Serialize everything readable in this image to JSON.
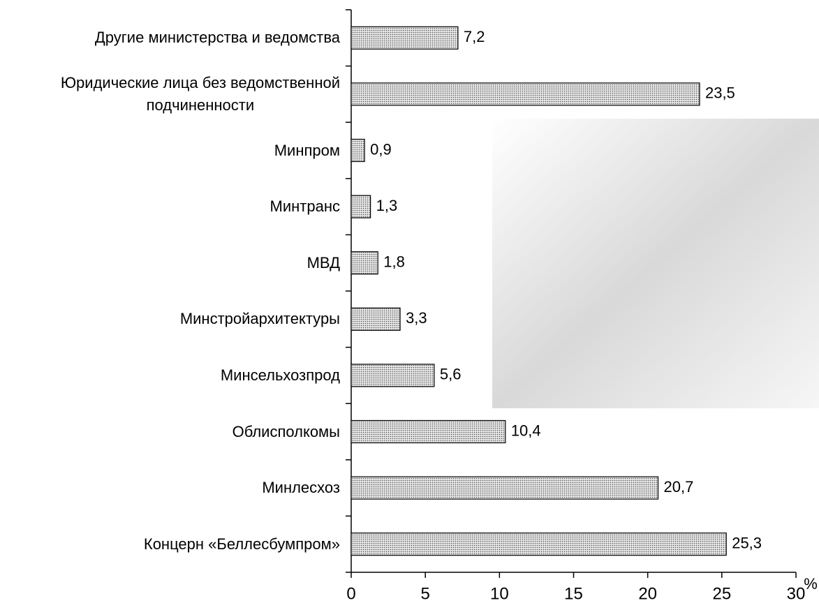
{
  "chart_data": {
    "type": "bar",
    "orientation": "horizontal",
    "categories": [
      "Другие министерства и ведомства",
      "Юридические лица без ведомственной\nподчиненности",
      "Минпром",
      "Минтранс",
      "МВД",
      "Минстройархитектуры",
      "Минсельхозпрод",
      "Облисполкомы",
      "Минлесхоз",
      "Концерн «Беллесбумпром»"
    ],
    "values": [
      7.2,
      23.5,
      0.9,
      1.3,
      1.8,
      3.3,
      5.6,
      10.4,
      20.7,
      25.3
    ],
    "value_labels": [
      "7,2",
      "23,5",
      "0,9",
      "1,3",
      "1,8",
      "3,3",
      "5,6",
      "10,4",
      "20,7",
      "25,3"
    ],
    "color": "#c8c8c8",
    "xlabel": "%",
    "xlim": [
      0,
      30
    ],
    "xticks": [
      0,
      5,
      10,
      15,
      20,
      25,
      30
    ]
  }
}
